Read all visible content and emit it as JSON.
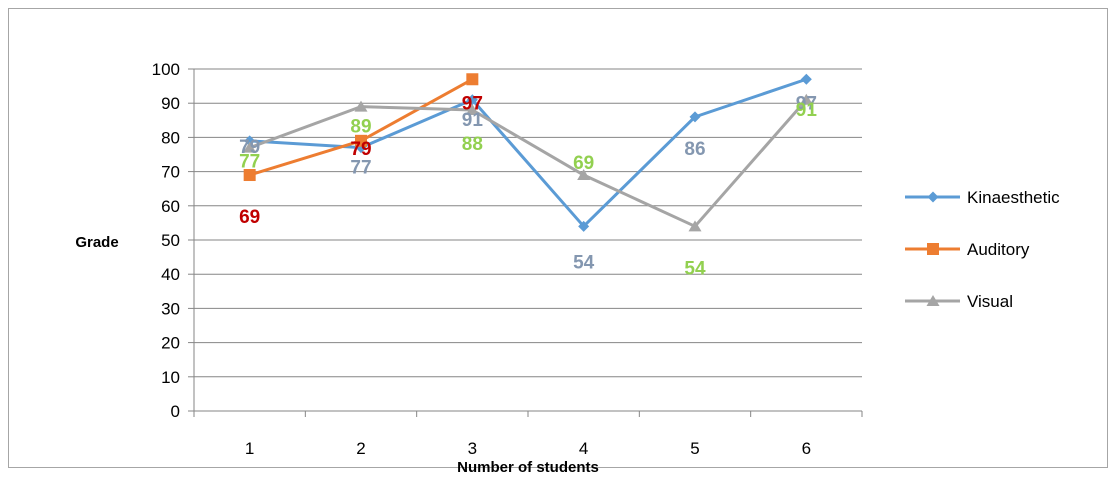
{
  "chart_data": {
    "type": "line",
    "title": "",
    "xlabel": "Number of students",
    "ylabel": "Grade",
    "categories": [
      "1",
      "2",
      "3",
      "4",
      "5",
      "6"
    ],
    "ylim": [
      0,
      100
    ],
    "yticks": [
      "0",
      "10",
      "20",
      "30",
      "40",
      "50",
      "60",
      "70",
      "80",
      "90",
      "100"
    ],
    "grid": true,
    "legend_position": "right",
    "series": [
      {
        "name": "Kinaesthetic",
        "values": [
          79,
          77,
          91,
          54,
          86,
          97
        ],
        "color": "#5b9bd5",
        "label_color": "#8497b0",
        "marker": "diamond",
        "labels": [
          "79",
          "77",
          "91",
          "54",
          "86",
          "97"
        ]
      },
      {
        "name": "Auditory",
        "values": [
          69,
          79,
          97,
          null,
          null,
          null
        ],
        "color": "#ed7d31",
        "label_color": "#c00000",
        "marker": "square",
        "labels": [
          "69",
          "79",
          "97",
          "",
          "",
          ""
        ]
      },
      {
        "name": "Visual",
        "values": [
          77,
          89,
          88,
          69,
          54,
          91
        ],
        "color": "#a5a5a5",
        "label_color": "#92d050",
        "marker": "triangle",
        "labels": [
          "77",
          "89",
          "88",
          "69",
          "54",
          "91"
        ]
      }
    ]
  }
}
